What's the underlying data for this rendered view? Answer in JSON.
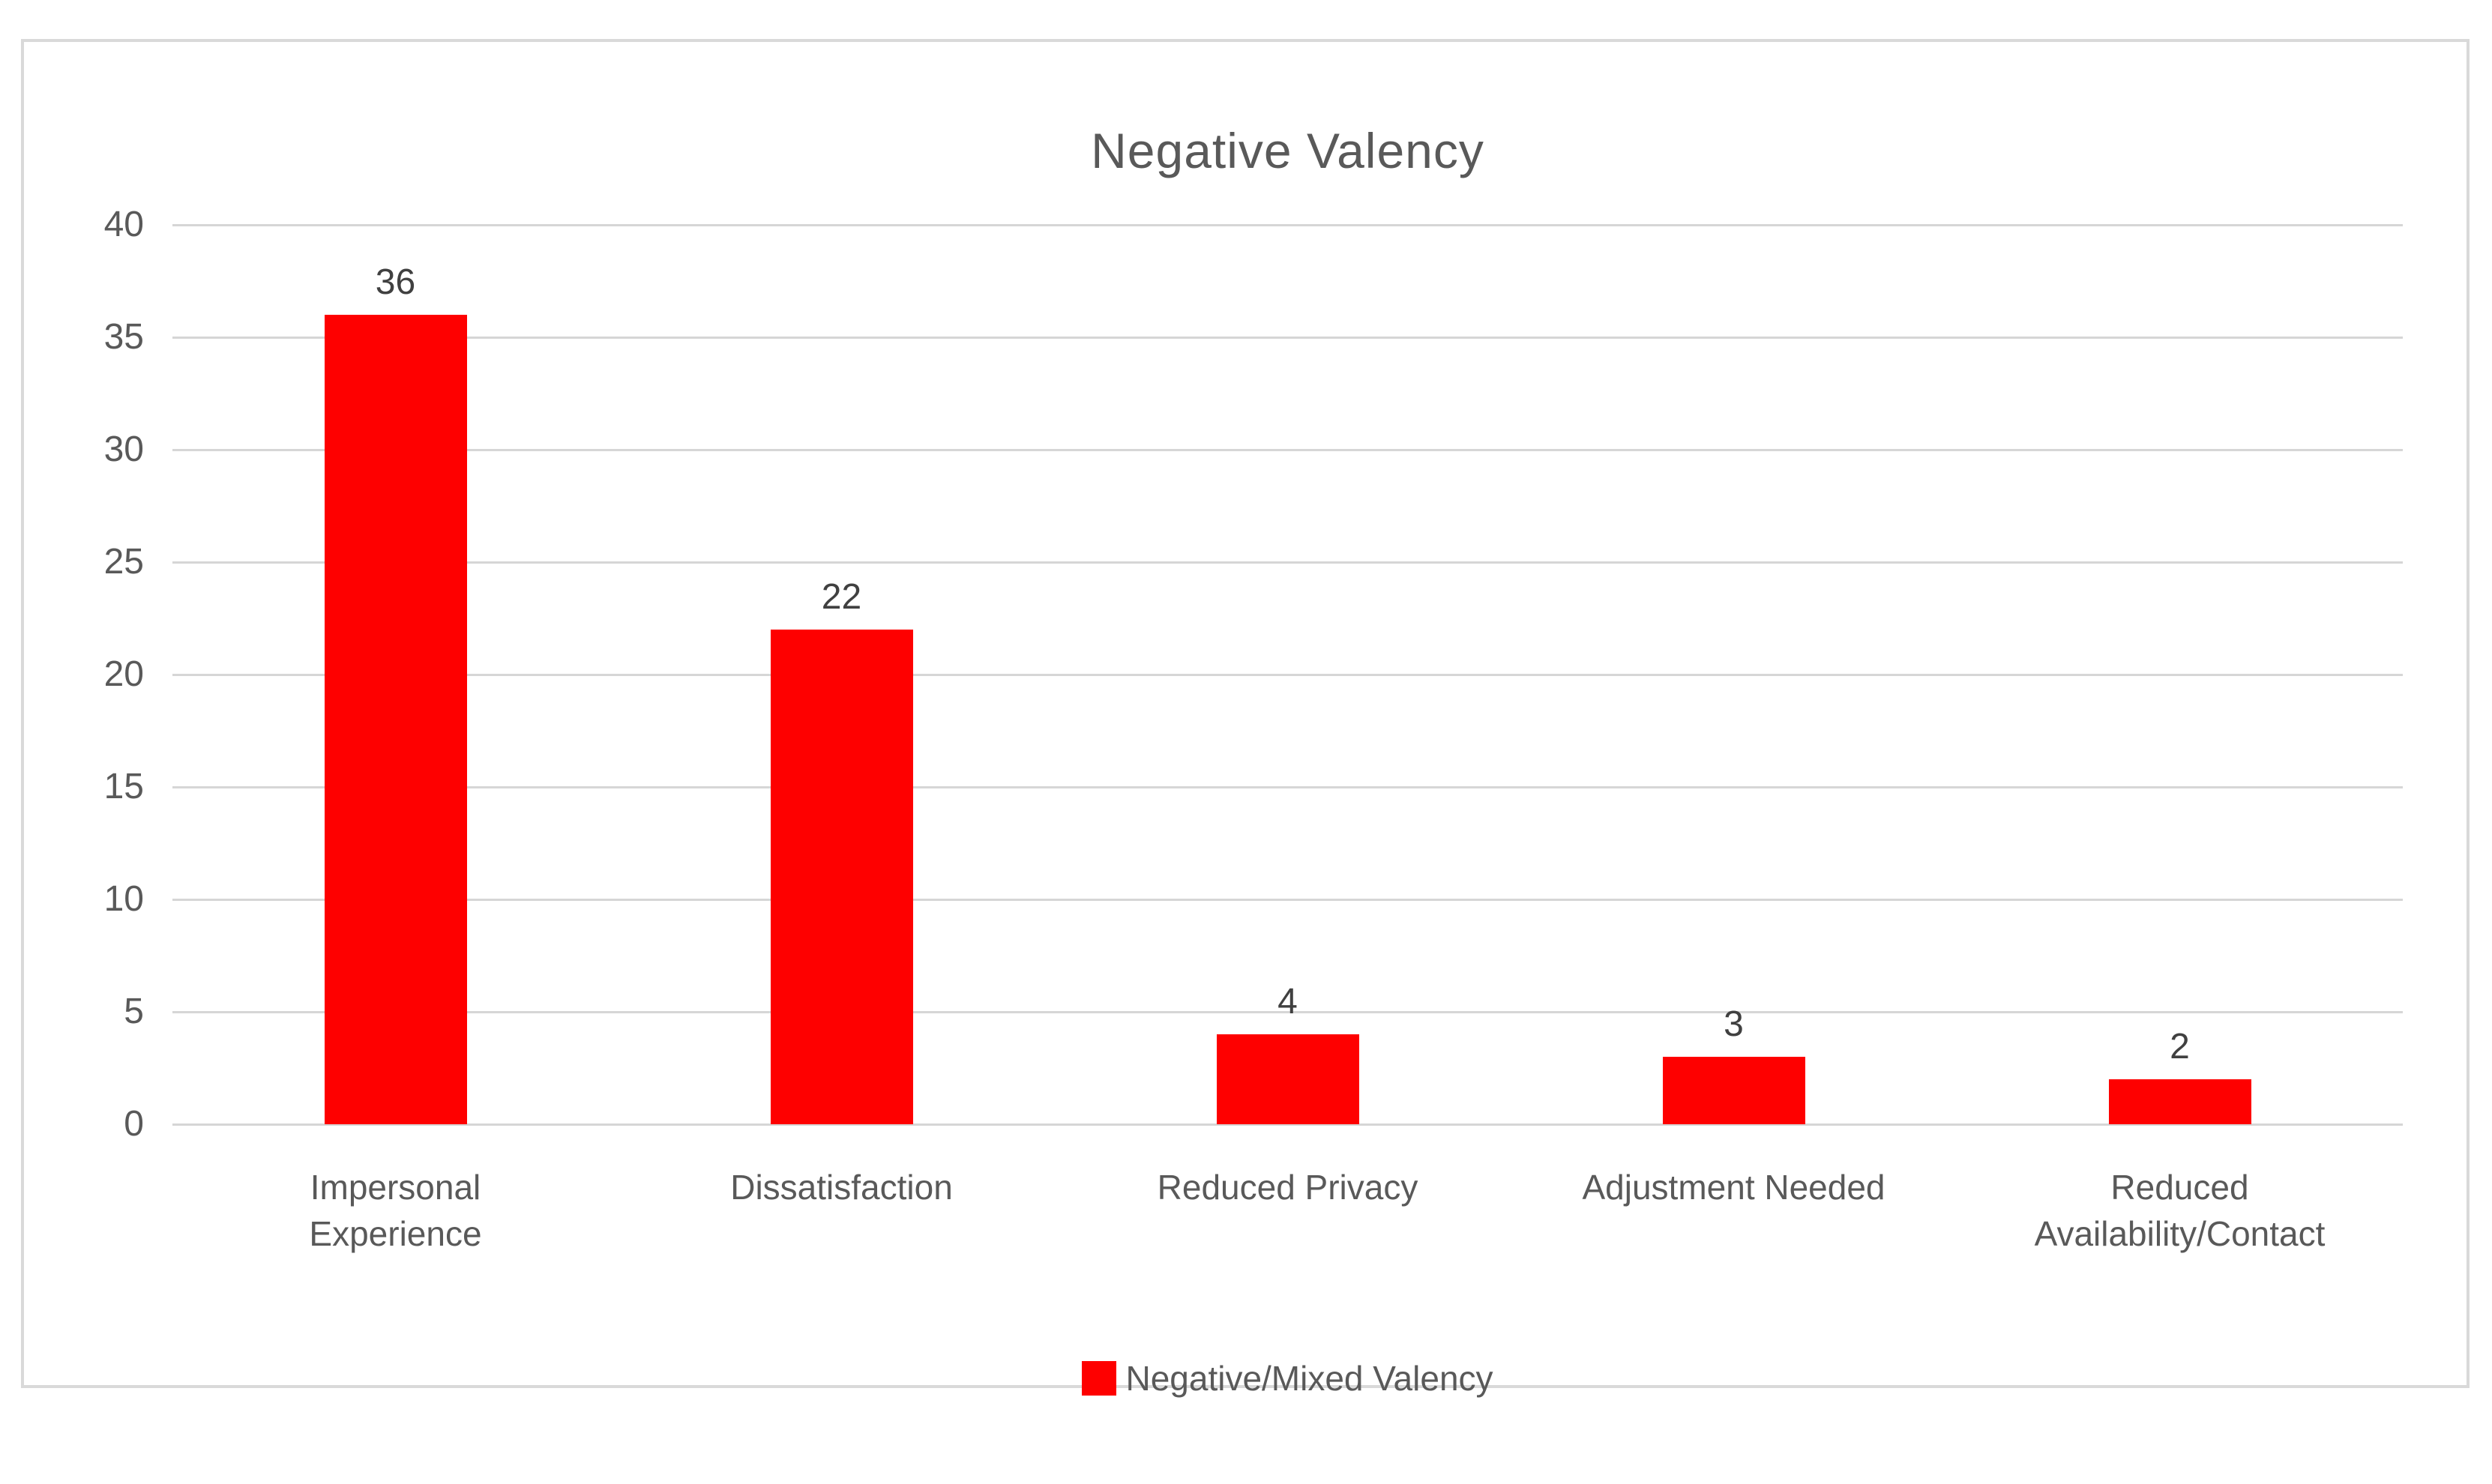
{
  "chart_data": {
    "type": "bar",
    "title": "Negative Valency",
    "categories": [
      "Impersonal Experience",
      "Dissatisfaction",
      "Reduced Privacy",
      "Adjustment Needed",
      "Reduced Availability/Contact"
    ],
    "series": [
      {
        "name": "Negative/Mixed Valency",
        "values": [
          36,
          22,
          4,
          3,
          2
        ],
        "color": "#fe0000"
      }
    ],
    "data_labels": [
      "36",
      "22",
      "4",
      "3",
      "2"
    ],
    "xlabel": "",
    "ylabel": "",
    "y_axis": {
      "min": 0,
      "max": 40,
      "step": 5,
      "tick_labels": [
        "40",
        "35",
        "30",
        "25",
        "20",
        "15",
        "10",
        "5",
        "0"
      ]
    },
    "grid": true,
    "legend_position": "bottom",
    "colors": {
      "bar": "#fe0000",
      "gridline": "#d6d6d6",
      "border": "#d9d9d9",
      "title_text": "#595959",
      "axis_text": "#595959",
      "data_label_text": "#404040",
      "background": "#ffffff"
    }
  }
}
